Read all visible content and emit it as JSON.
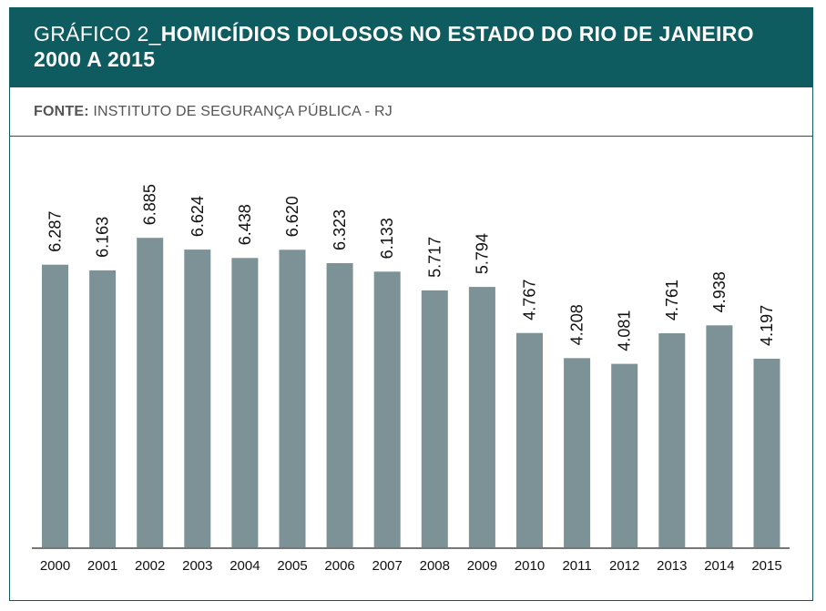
{
  "header": {
    "prefix": "GRÁFICO 2_",
    "title_line1": "HOMICÍDIOS DOLOSOS NO ESTADO DO RIO DE JANEIRO",
    "title_line2": "2000 A 2015"
  },
  "source": {
    "label": "FONTE:",
    "text": " INSTITUTO DE SEGURANÇA PÚBLICA - RJ"
  },
  "colors": {
    "header_bg": "#0f5c60",
    "bar": "#7d9296"
  },
  "chart_data": {
    "type": "bar",
    "title": "HOMICÍDIOS DOLOSOS NO ESTADO DO RIO DE JANEIRO 2000 A 2015",
    "xlabel": "",
    "ylabel": "",
    "grid": false,
    "ylim": [
      0,
      7700
    ],
    "categories": [
      "2000",
      "2001",
      "2002",
      "2003",
      "2004",
      "2005",
      "2006",
      "2007",
      "2008",
      "2009",
      "2010",
      "2011",
      "2012",
      "2013",
      "2014",
      "2015"
    ],
    "values": [
      6287,
      6163,
      6885,
      6624,
      6438,
      6620,
      6323,
      6133,
      5717,
      5794,
      4767,
      4208,
      4081,
      4761,
      4938,
      4197
    ],
    "value_labels": [
      "6.287",
      "6.163",
      "6.885",
      "6.624",
      "6.438",
      "6.620",
      "6.323",
      "6.133",
      "5.717",
      "5.794",
      "4.767",
      "4.208",
      "4.081",
      "4.761",
      "4.938",
      "4.197"
    ]
  }
}
